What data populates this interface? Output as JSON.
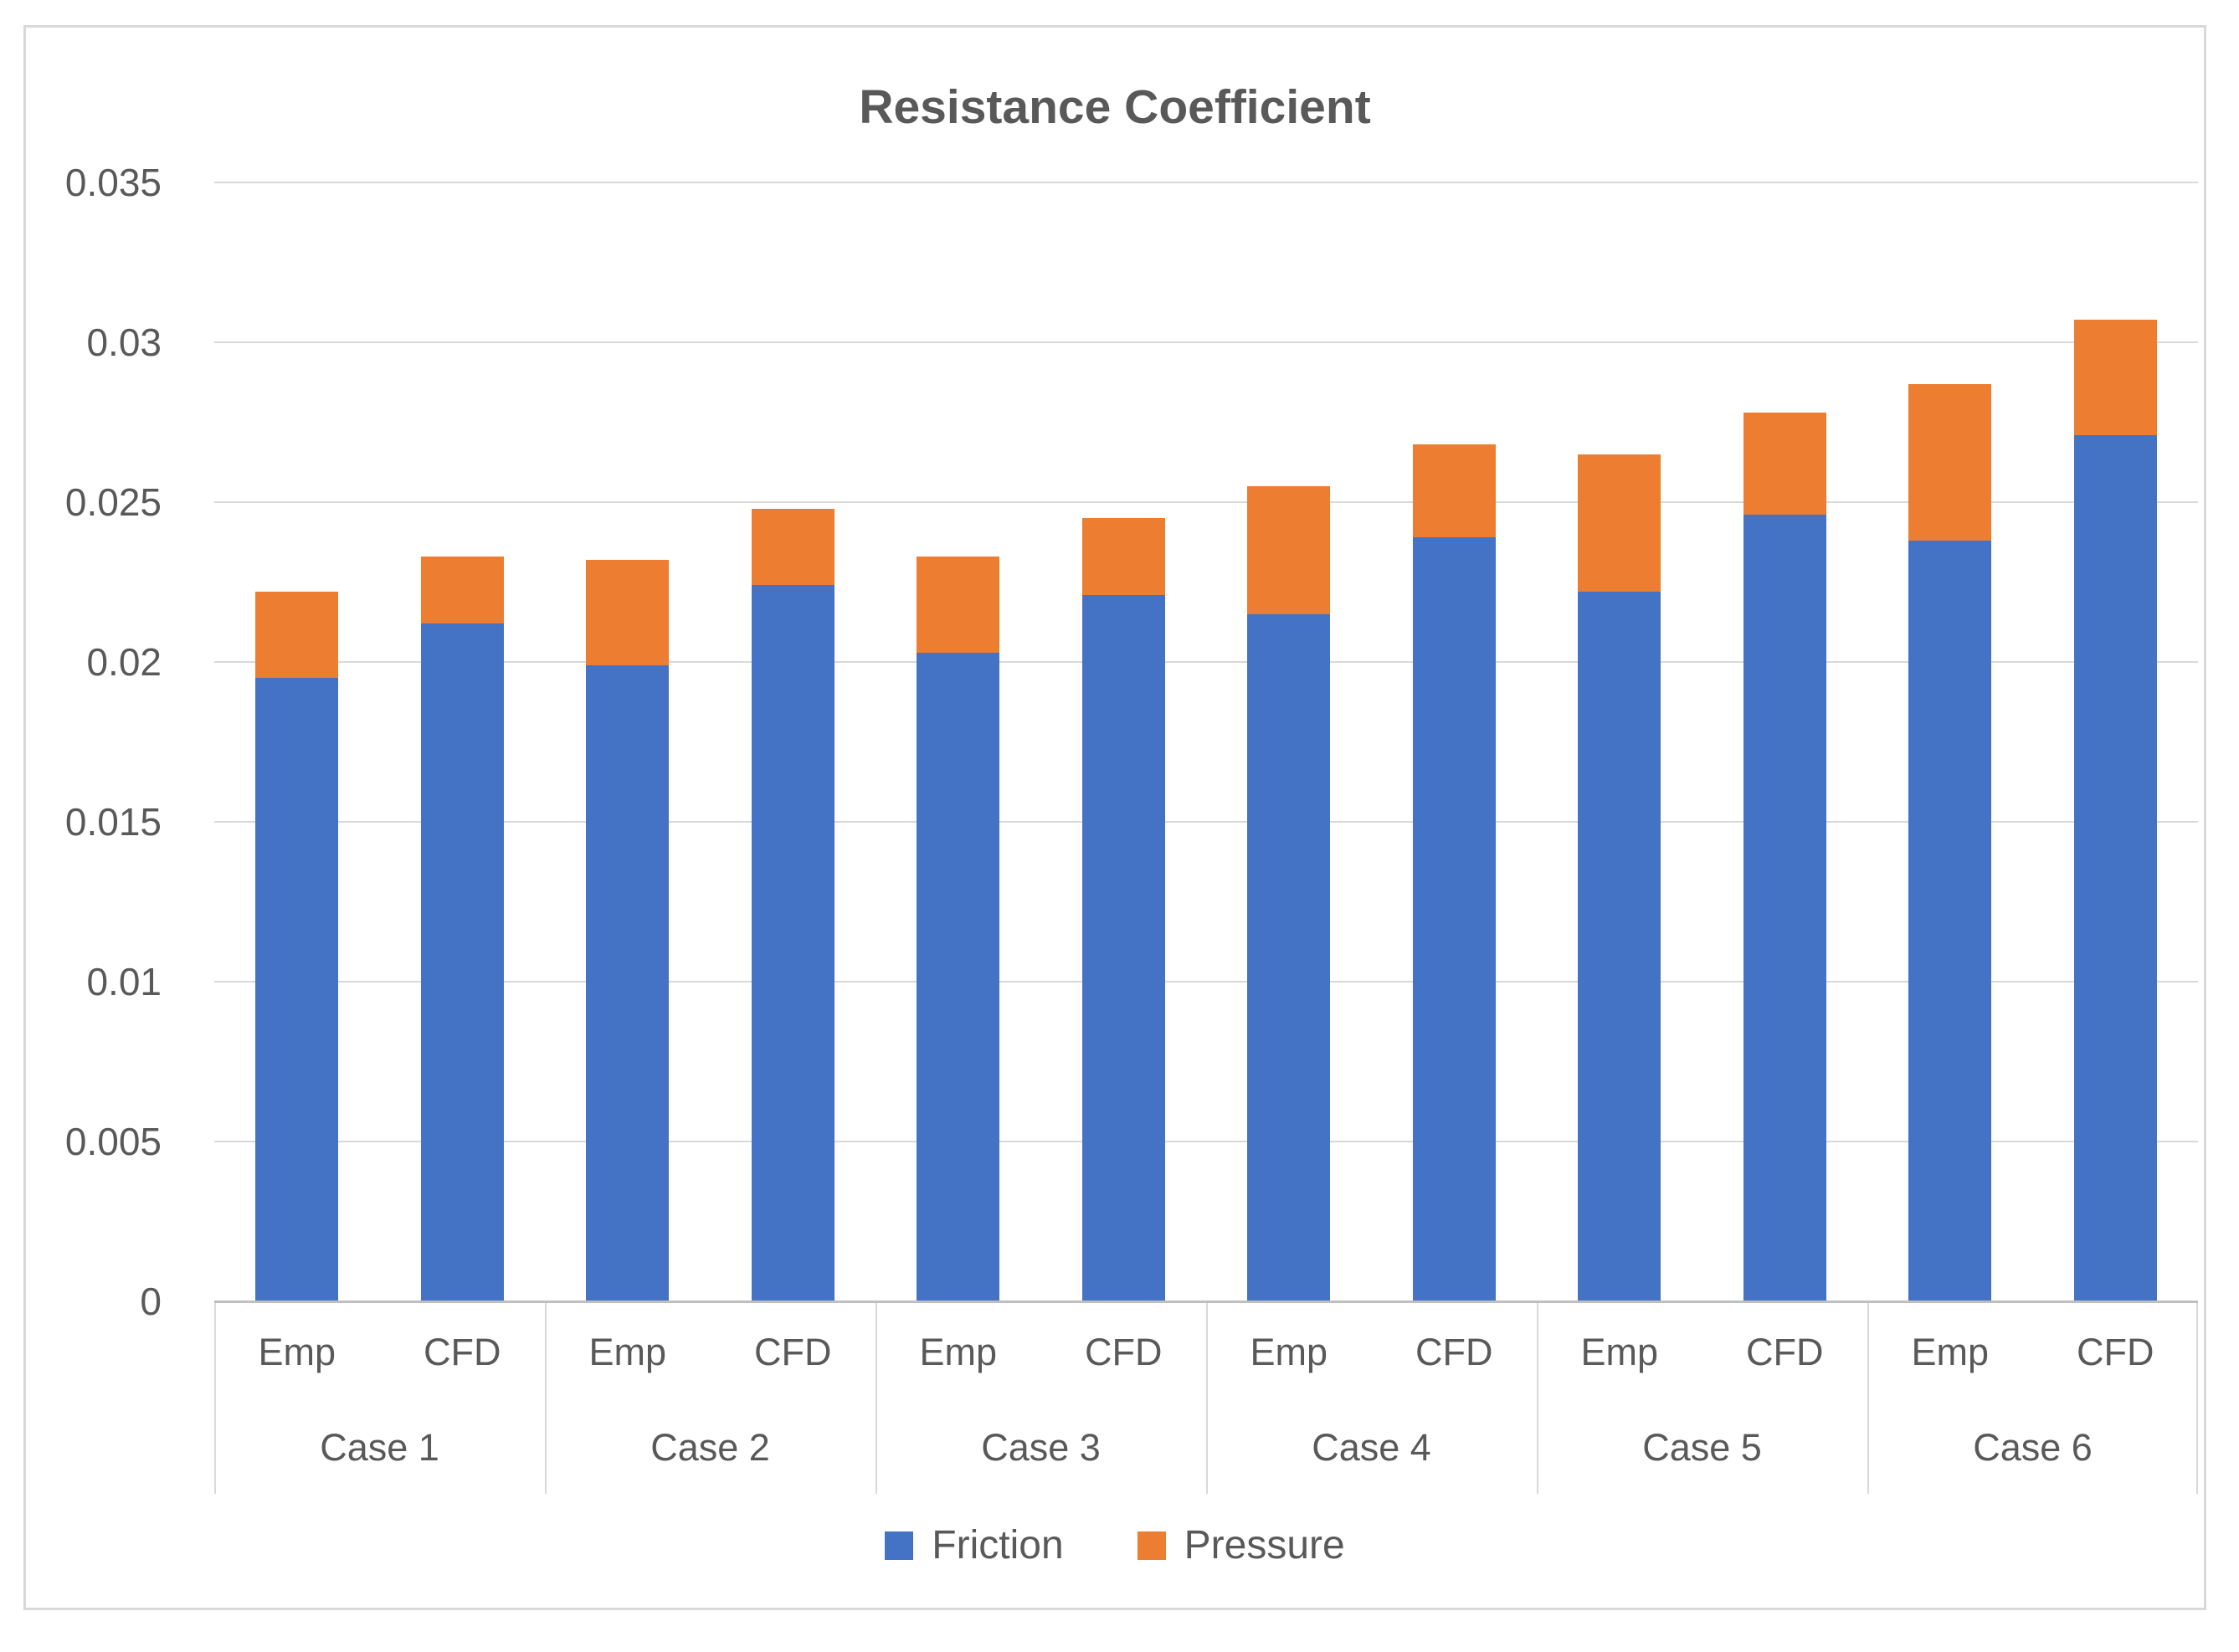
{
  "chart_data": {
    "type": "bar",
    "stacked": true,
    "title": "Resistance Coefficient",
    "groups": [
      "Case 1",
      "Case 2",
      "Case 3",
      "Case 4",
      "Case 5",
      "Case 6"
    ],
    "subcategories": [
      "Emp",
      "CFD"
    ],
    "series": [
      {
        "name": "Friction",
        "color": "#4472C4",
        "values": [
          0.0195,
          0.0212,
          0.0199,
          0.0224,
          0.0203,
          0.0221,
          0.0215,
          0.0239,
          0.0222,
          0.0246,
          0.0238,
          0.0271
        ]
      },
      {
        "name": "Pressure",
        "color": "#ED7D31",
        "values": [
          0.0027,
          0.0021,
          0.0033,
          0.0024,
          0.003,
          0.0024,
          0.004,
          0.0029,
          0.0043,
          0.0032,
          0.0049,
          0.0036
        ]
      }
    ],
    "totals": [
      0.0222,
      0.0233,
      0.0232,
      0.0248,
      0.0233,
      0.0245,
      0.0255,
      0.0268,
      0.0265,
      0.0278,
      0.0287,
      0.0307
    ],
    "ylim": [
      0,
      0.035
    ],
    "yticks": [
      {
        "label": "0.035",
        "value": 0.035
      },
      {
        "label": "0.03",
        "value": 0.03
      },
      {
        "label": "0.025",
        "value": 0.025
      },
      {
        "label": "0.02",
        "value": 0.02
      },
      {
        "label": "0.015",
        "value": 0.015
      },
      {
        "label": "0.01",
        "value": 0.01
      },
      {
        "label": "0.005",
        "value": 0.005
      },
      {
        "label": "0",
        "value": 0
      }
    ],
    "grid": true,
    "legend_position": "bottom",
    "colors": {
      "gridline": "#d9d9d9",
      "axis_line": "#bfbfbf",
      "text": "#595959",
      "canvas_border": "#d9d9d9",
      "background": "#ffffff"
    }
  }
}
